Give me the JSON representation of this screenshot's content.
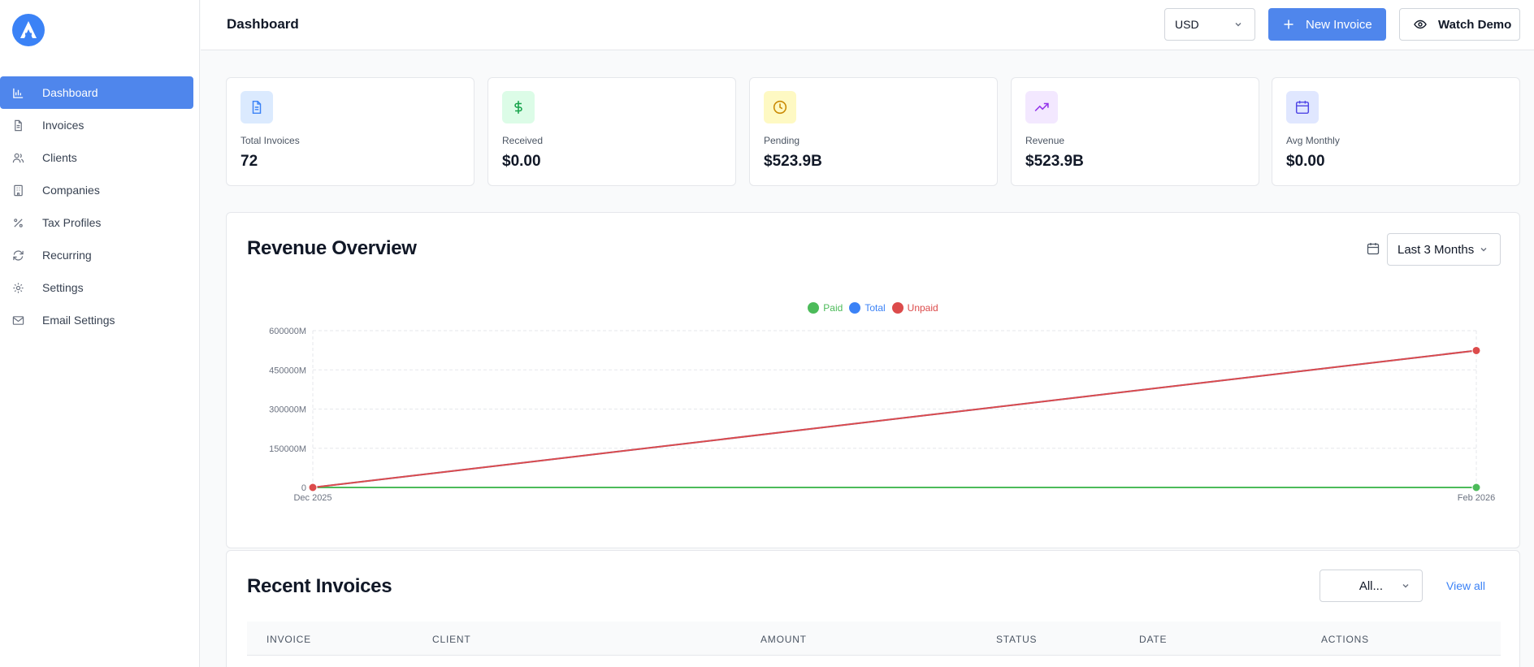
{
  "header": {
    "title": "Dashboard",
    "currency": "USD",
    "new_invoice": "New Invoice",
    "watch_demo": "Watch Demo"
  },
  "sidebar": {
    "items": [
      {
        "label": "Dashboard",
        "icon": "bar-chart-icon",
        "active": true
      },
      {
        "label": "Invoices",
        "icon": "file-text-icon"
      },
      {
        "label": "Clients",
        "icon": "users-icon"
      },
      {
        "label": "Companies",
        "icon": "building-icon"
      },
      {
        "label": "Tax Profiles",
        "icon": "percent-icon"
      },
      {
        "label": "Recurring",
        "icon": "refresh-icon"
      },
      {
        "label": "Settings",
        "icon": "gear-icon"
      },
      {
        "label": "Email Settings",
        "icon": "mail-icon"
      }
    ]
  },
  "stats": [
    {
      "label": "Total Invoices",
      "value": "72",
      "icon": "file-text-icon",
      "color": "#3b82f6",
      "bg": "#dbeafe"
    },
    {
      "label": "Received",
      "value": "$0.00",
      "icon": "dollar-icon",
      "color": "#16a34a",
      "bg": "#dcfce7"
    },
    {
      "label": "Pending",
      "value": "$523.9B",
      "icon": "clock-icon",
      "color": "#ca8a04",
      "bg": "#fef9c3"
    },
    {
      "label": "Revenue",
      "value": "$523.9B",
      "icon": "trending-up-icon",
      "color": "#9333ea",
      "bg": "#f3e8ff"
    },
    {
      "label": "Avg Monthly",
      "value": "$0.00",
      "icon": "calendar-icon",
      "color": "#4f46e5",
      "bg": "#e0e7ff"
    }
  ],
  "revenue": {
    "title": "Revenue Overview",
    "range": "Last 3 Months"
  },
  "chart_data": {
    "type": "line",
    "x": [
      "Dec 2025",
      "Feb 2026"
    ],
    "series": [
      {
        "name": "Paid",
        "values": [
          0,
          0
        ],
        "color": "#4cbb5a"
      },
      {
        "name": "Total",
        "values": [
          0,
          523900
        ],
        "color": "#3b82f6"
      },
      {
        "name": "Unpaid",
        "values": [
          0,
          523900
        ],
        "color": "#dc4b4b"
      }
    ],
    "y_ticks": [
      "0",
      "150000M",
      "300000M",
      "450000M",
      "600000M"
    ],
    "ylim": [
      0,
      600000
    ],
    "y_unit": "M",
    "grid": true,
    "legend": "top-center"
  },
  "recent": {
    "title": "Recent Invoices",
    "filter": "All...",
    "view_all": "View all",
    "columns": [
      "INVOICE",
      "CLIENT",
      "AMOUNT",
      "STATUS",
      "DATE",
      "ACTIONS"
    ]
  }
}
